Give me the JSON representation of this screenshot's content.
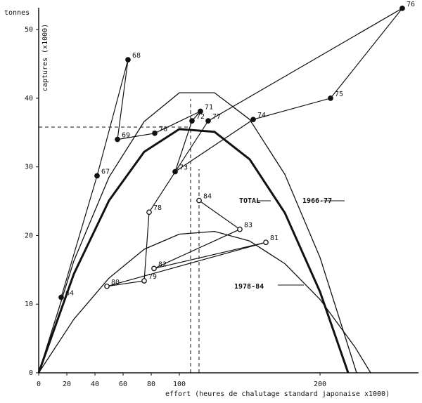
{
  "chart_data": {
    "type": "line",
    "ylabel_unit": "tonnes",
    "ylabel": "captures (x1000)",
    "xlabel": "effort (heures de chalutage standard japonaise x1000)",
    "xlim": [
      0,
      270
    ],
    "ylim": [
      0,
      54
    ],
    "xticks": [
      0,
      20,
      40,
      60,
      80,
      100,
      200
    ],
    "yticks": [
      0,
      10,
      20,
      30,
      40,
      50
    ],
    "series": [
      {
        "name": "TOTAL",
        "color": "#111111",
        "width": 3,
        "x": [
          0,
          25,
          50,
          75,
          100,
          125,
          150,
          175,
          200,
          220
        ],
        "values": [
          0,
          14.4,
          25.1,
          32.2,
          35.5,
          35.1,
          31.1,
          23.3,
          11.8,
          0
        ]
      },
      {
        "name": "1966-77",
        "color": "#111111",
        "width": 1.3,
        "x": [
          0,
          25,
          50,
          75,
          100,
          125,
          150,
          175,
          200,
          226
        ],
        "values": [
          0,
          16.3,
          28.5,
          36.6,
          40.8,
          40.8,
          36.9,
          28.9,
          16.8,
          0
        ]
      },
      {
        "name": "1978-84",
        "color": "#111111",
        "width": 1.3,
        "x": [
          0,
          25,
          50,
          75,
          100,
          125,
          150,
          175,
          200,
          225,
          236
        ],
        "values": [
          0,
          7.8,
          13.8,
          18.0,
          20.2,
          20.6,
          19.2,
          15.9,
          10.7,
          3.7,
          0
        ]
      }
    ],
    "trajectory": {
      "labels": [
        "64",
        "67",
        "68",
        "69",
        "70",
        "71",
        "72",
        "73",
        "74",
        "75",
        "76",
        "77",
        "78",
        "79",
        "80",
        "81",
        "82",
        "83",
        "84"
      ],
      "x": [
        16,
        41.5,
        63.5,
        56,
        82.5,
        115,
        109,
        97,
        152.5,
        207.5,
        258.5,
        120.5,
        78.5,
        75,
        48.5,
        161.5,
        82,
        143,
        114
      ],
      "values": [
        11,
        28.7,
        45.6,
        34.0,
        34.9,
        38.1,
        36.7,
        29.3,
        36.9,
        40.0,
        53.1,
        36.7,
        23.4,
        13.4,
        12.6,
        19.0,
        15.2,
        20.9,
        25.1
      ]
    },
    "reference": {
      "x": [
        108,
        114
      ],
      "y": 35.8
    }
  }
}
